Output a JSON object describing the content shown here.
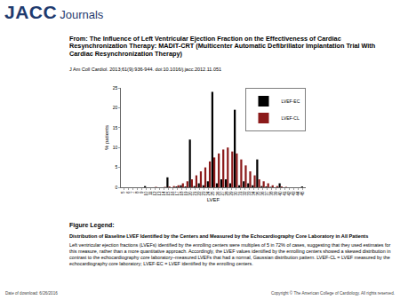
{
  "header": {
    "logo": [
      "JACC",
      "Journals"
    ],
    "title": "From: The Influence of Left Ventricular Ejection Fraction on the Effectiveness of Cardiac Resynchronization Therapy: MADIT-CRT (Multicenter Automatic Defibrillator Implantation Trial With Cardiac Resynchronization Therapy)",
    "citation": "J Am Coll Cardiol. 2013;61(9):936-944. doi:10.1016/j.jacc.2012.11.051"
  },
  "chart_data": {
    "type": "bar",
    "x_label": "LVEF",
    "y_label": "% patients",
    "categories": [
      "5",
      "6",
      "7",
      "8",
      "9",
      "10",
      "11",
      "12",
      "13",
      "14",
      "15",
      "16",
      "17",
      "18",
      "19",
      "20",
      "21",
      "22",
      "23",
      "24",
      "25",
      "26",
      "27",
      "28",
      "29",
      "30",
      "31",
      "32",
      "33",
      "34",
      "35",
      "36",
      "37",
      "38",
      "39",
      "40",
      "41",
      "42",
      "43",
      "44",
      "45"
    ],
    "series": [
      {
        "name": "LVEF-EC",
        "color": "#000000",
        "values": [
          0,
          0,
          0,
          0,
          0,
          0.3,
          0,
          0,
          0,
          0,
          2.5,
          0,
          0.2,
          0.5,
          0.2,
          12,
          0.3,
          1,
          0.5,
          1.5,
          24,
          1,
          2,
          2,
          1,
          19.5,
          0.5,
          1.5,
          1,
          0.5,
          7,
          0.3,
          0.2,
          0.1,
          0,
          1,
          0,
          0,
          0,
          0,
          0.2
        ]
      },
      {
        "name": "LVEF-CL",
        "color": "#8b1a1a",
        "values": [
          0,
          0,
          0,
          0,
          0,
          0,
          0,
          0.1,
          0,
          0.1,
          0.2,
          0.3,
          0.5,
          1,
          1.5,
          2,
          3,
          4,
          5,
          6.5,
          7.5,
          8.5,
          9.5,
          10,
          9,
          8.5,
          7,
          5.5,
          4,
          3,
          2,
          1.5,
          1,
          0.5,
          0.3,
          0.2,
          0.1,
          0,
          0,
          0,
          0
        ]
      }
    ],
    "ylim": [
      0,
      25
    ],
    "yticks": [
      0,
      5,
      10,
      15,
      20,
      25
    ],
    "grid": false,
    "legend": "top-right"
  },
  "figure_legend": {
    "heading": "Figure Legend:",
    "title": "Distribution of Baseline LVEF Identified by the Centers and Measured by the Echocardiography Core Laboratory in All Patients",
    "text": "Left ventricular ejection fractions (LVEFs) identified by the enrolling centers were multiples of 5 in 72% of cases, suggesting that they used estimates for this measure, rather than a more quantitative approach. Accordingly, the LVEF values identified by the enrolling centers showed a skewed distribution in contrast to the echocardiography core laboratory–measured LVEFs that had a normal, Gaussian distribution pattern. LVEF-CL = LVEF measured by the echocardiography core laboratory; LVEF-EC = LVEF identified by the enrolling centers."
  },
  "footer": {
    "date": "Date of download: 6/26/2016",
    "copyright": "Copyright © The American College of Cardiology. All rights reserved."
  }
}
